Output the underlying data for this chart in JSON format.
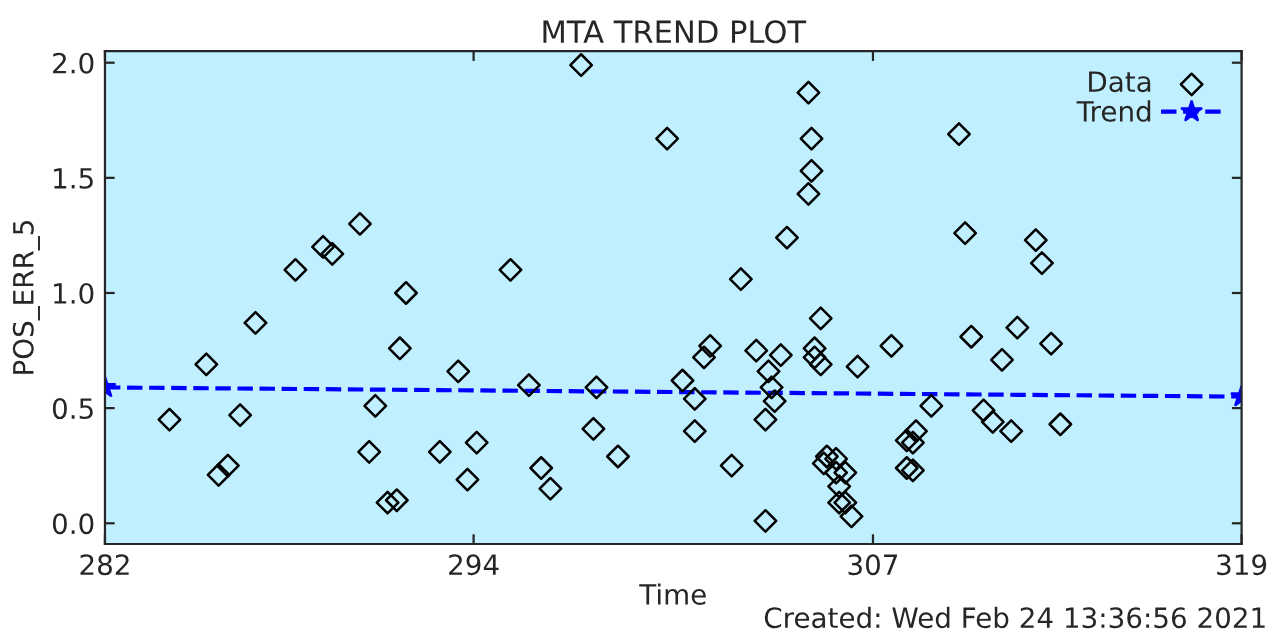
{
  "chart_data": {
    "type": "scatter",
    "title": "MTA TREND PLOT",
    "xlabel": "Time",
    "ylabel": "POS_ERR_5",
    "annotations": [
      "Created: Wed Feb 24 13:36:56 2021"
    ],
    "xlim": [
      282,
      319
    ],
    "xticks": [
      282,
      294,
      307,
      319
    ],
    "ylim": [
      -0.09,
      2.05
    ],
    "yticks": [
      {
        "value": 0,
        "label": "0.0"
      },
      {
        "value": 0.5,
        "label": "0.5"
      },
      {
        "value": 1.0,
        "label": "1.0"
      },
      {
        "value": 1.5,
        "label": "1.5"
      },
      {
        "value": 2.0,
        "label": "2.0"
      }
    ],
    "grid": false,
    "legend": "top right",
    "series": [
      {
        "name": "Data",
        "marker": "diamond",
        "color": "#000000",
        "x": [
          284.1,
          285.3,
          285.7,
          286.0,
          286.4,
          286.9,
          288.2,
          289.1,
          289.4,
          290.3,
          290.6,
          290.8,
          291.2,
          291.5,
          291.6,
          291.8,
          292.9,
          293.5,
          293.8,
          294.1,
          295.2,
          295.8,
          296.2,
          296.5,
          297.5,
          297.9,
          298.0,
          298.7,
          300.3,
          300.8,
          301.2,
          301.2,
          301.5,
          301.7,
          302.4,
          302.7,
          303.2,
          303.5,
          303.5,
          303.6,
          303.7,
          303.8,
          304.0,
          304.2,
          304.9,
          305.0,
          305.0,
          304.9,
          305.3,
          305.1,
          305.1,
          305.3,
          305.5,
          305.4,
          305.8,
          305.8,
          306.1,
          305.9,
          305.9,
          306.1,
          306.3,
          306.5,
          307.6,
          308.1,
          308.4,
          308.3,
          308.1,
          308.3,
          308.9,
          309.8,
          310.0,
          310.2,
          310.6,
          310.9,
          311.2,
          311.5,
          311.7,
          312.3,
          312.5,
          312.8,
          313.1
        ],
        "values": [
          0.45,
          0.69,
          0.21,
          0.25,
          0.47,
          0.87,
          1.1,
          1.2,
          1.17,
          1.3,
          0.31,
          0.51,
          0.09,
          0.1,
          0.76,
          1.0,
          0.31,
          0.66,
          0.19,
          0.35,
          1.1,
          0.6,
          0.24,
          0.15,
          1.99,
          0.41,
          0.59,
          0.29,
          1.67,
          0.62,
          0.4,
          0.54,
          0.72,
          0.77,
          0.25,
          1.06,
          0.75,
          0.01,
          0.45,
          0.66,
          0.59,
          0.53,
          0.73,
          1.24,
          1.87,
          1.67,
          1.53,
          1.43,
          0.89,
          0.76,
          0.72,
          0.69,
          0.29,
          0.26,
          0.28,
          0.22,
          0.22,
          0.16,
          0.09,
          0.09,
          0.03,
          0.68,
          0.77,
          0.36,
          0.4,
          0.35,
          0.24,
          0.23,
          0.51,
          1.69,
          1.26,
          0.81,
          0.49,
          0.44,
          0.71,
          0.4,
          0.85,
          1.23,
          1.13,
          0.78,
          0.43
        ]
      },
      {
        "name": "Trend",
        "type": "line",
        "marker": "star",
        "line_style": "dashed",
        "color": "#0000ff",
        "x": [
          282,
          319
        ],
        "values": [
          0.59,
          0.55
        ]
      }
    ]
  }
}
